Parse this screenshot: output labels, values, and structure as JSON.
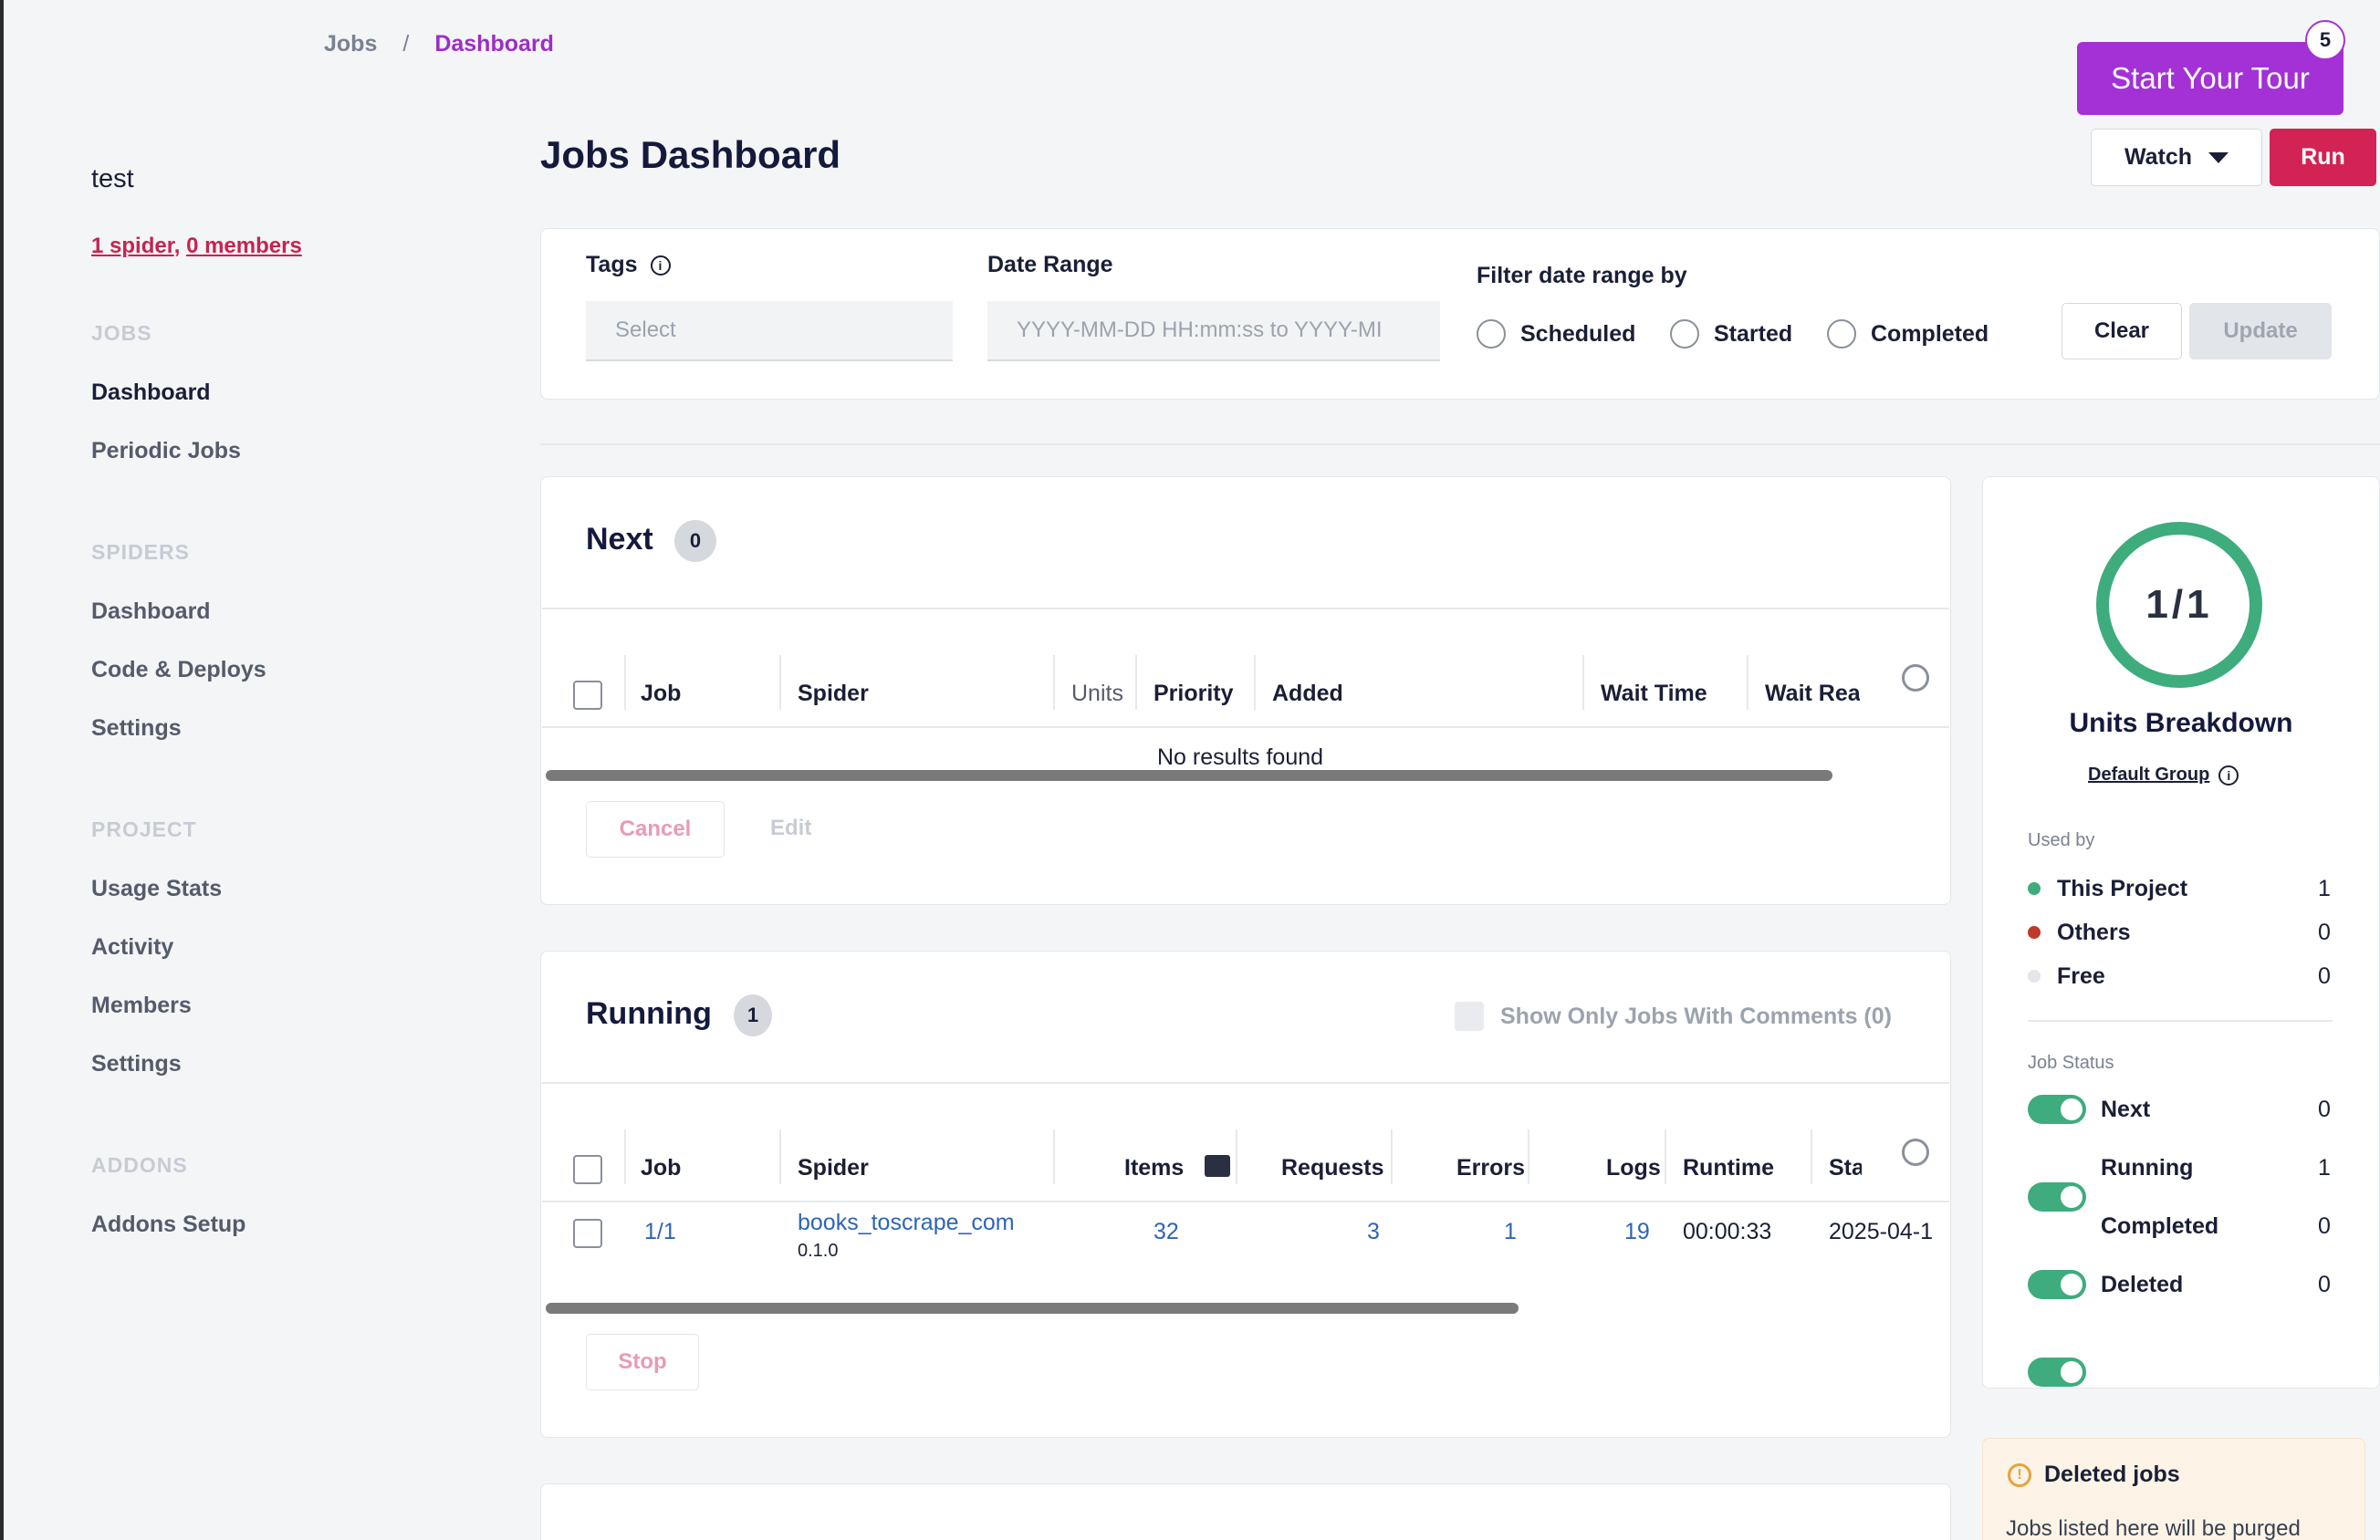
{
  "breadcrumb": {
    "items": [
      "Jobs",
      "Dashboard"
    ],
    "separator": "/"
  },
  "sidebar": {
    "project_name": "test",
    "spiders_link": "1 spider",
    "comma": ",",
    "members_link": "0 members",
    "sections": [
      {
        "heading": "JOBS",
        "items": [
          "Dashboard",
          "Periodic Jobs"
        ]
      },
      {
        "heading": "SPIDERS",
        "items": [
          "Dashboard",
          "Code & Deploys",
          "Settings"
        ]
      },
      {
        "heading": "PROJECT",
        "items": [
          "Usage Stats",
          "Activity",
          "Members",
          "Settings"
        ]
      },
      {
        "heading": "ADDONS",
        "items": [
          "Addons Setup"
        ]
      }
    ]
  },
  "header": {
    "title": "Jobs Dashboard",
    "tour_label": "Start Your Tour",
    "tour_badge": "5",
    "watch_label": "Watch",
    "run_label": "Run"
  },
  "filters": {
    "tags_label": "Tags",
    "tags_placeholder": "Select",
    "date_range_label": "Date Range",
    "date_range_placeholder": "YYYY-MM-DD HH:mm:ss to YYYY-MI",
    "filter_by_label": "Filter date range by",
    "options": [
      "Scheduled",
      "Started",
      "Completed"
    ],
    "clear_label": "Clear",
    "update_label": "Update"
  },
  "next": {
    "title": "Next",
    "count": "0",
    "columns": [
      "Job",
      "Spider",
      "Units",
      "Priority",
      "Added",
      "Wait Time",
      "Wait Rea"
    ],
    "empty_text": "No results found",
    "cancel_label": "Cancel",
    "edit_label": "Edit"
  },
  "running": {
    "title": "Running",
    "count": "1",
    "comments_filter": "Show Only Jobs With Comments (0)",
    "columns": [
      "Job",
      "Spider",
      "Items",
      "Requests",
      "Errors",
      "Logs",
      "Runtime",
      "Sta"
    ],
    "rows": [
      {
        "job": "1/1",
        "spider": "books_toscrape_com",
        "version": "0.1.0",
        "items": "32",
        "requests": "3",
        "errors": "1",
        "logs": "19",
        "runtime": "00:00:33",
        "started": "2025-04-1"
      }
    ],
    "stop_label": "Stop"
  },
  "units": {
    "ring_text": "1/1",
    "title": "Units Breakdown",
    "group_link": "Default Group",
    "used_by_heading": "Used by",
    "used_by": [
      {
        "label": "This Project",
        "value": "1",
        "color": "#3eac7d"
      },
      {
        "label": "Others",
        "value": "0",
        "color": "#c0392b"
      },
      {
        "label": "Free",
        "value": "0",
        "color": "#e3e6ea"
      }
    ],
    "status_heading": "Job Status",
    "statuses": [
      {
        "label": "Next",
        "value": "0",
        "on": true
      },
      {
        "label": "Running",
        "value": "1",
        "on": true
      },
      {
        "label": "Completed",
        "value": "0",
        "on": true
      },
      {
        "label": "Deleted",
        "value": "0",
        "on": true
      }
    ]
  },
  "deleted_notice": {
    "title": "Deleted jobs",
    "text": "Jobs listed here will be purged"
  },
  "colors": {
    "accent": "#a331d6",
    "run": "#d32254",
    "success": "#3eac7d",
    "link": "#2e64b5"
  }
}
